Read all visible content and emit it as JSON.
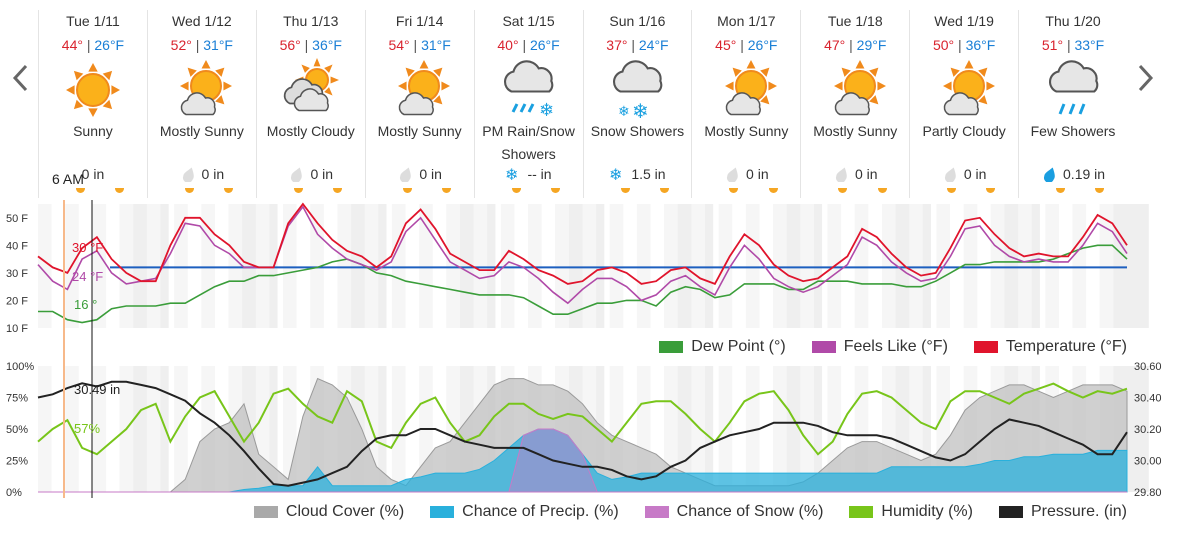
{
  "forecast": {
    "days": [
      {
        "date": "Tue 1/11",
        "hi": "44°",
        "lo": "26°F",
        "condition": "Sunny",
        "icon": "sun-icon",
        "precip": "0 in",
        "precip_icon": "none"
      },
      {
        "date": "Wed 1/12",
        "hi": "52°",
        "lo": "31°F",
        "condition": "Mostly Sunny",
        "icon": "sun-cloud-icon",
        "precip": "0 in",
        "precip_icon": "drop-icon"
      },
      {
        "date": "Thu 1/13",
        "hi": "56°",
        "lo": "36°F",
        "condition": "Mostly Cloudy",
        "icon": "cloud-sun-icon",
        "precip": "0 in",
        "precip_icon": "drop-icon"
      },
      {
        "date": "Fri 1/14",
        "hi": "54°",
        "lo": "31°F",
        "condition": "Mostly Sunny",
        "icon": "sun-cloud-icon",
        "precip": "0 in",
        "precip_icon": "drop-icon"
      },
      {
        "date": "Sat 1/15",
        "hi": "40°",
        "lo": "26°F",
        "condition": "PM Rain/Snow Showers",
        "icon": "rain-snow-icon",
        "precip": "-- in",
        "precip_icon": "snowflake-icon"
      },
      {
        "date": "Sun 1/16",
        "hi": "37°",
        "lo": "24°F",
        "condition": "Snow Showers",
        "icon": "snow-icon",
        "precip": "1.5 in",
        "precip_icon": "snowflake-icon"
      },
      {
        "date": "Mon 1/17",
        "hi": "45°",
        "lo": "26°F",
        "condition": "Mostly Sunny",
        "icon": "sun-cloud-icon",
        "precip": "0 in",
        "precip_icon": "drop-icon"
      },
      {
        "date": "Tue 1/18",
        "hi": "47°",
        "lo": "29°F",
        "condition": "Mostly Sunny",
        "icon": "sun-cloud-icon",
        "precip": "0 in",
        "precip_icon": "drop-icon"
      },
      {
        "date": "Wed 1/19",
        "hi": "50°",
        "lo": "36°F",
        "condition": "Partly Cloudy",
        "icon": "sun-cloud-icon",
        "precip": "0 in",
        "precip_icon": "drop-icon"
      },
      {
        "date": "Thu 1/20",
        "hi": "51°",
        "lo": "33°F",
        "condition": "Few Showers",
        "icon": "rain-icon",
        "precip": "0.19 in",
        "precip_icon": "drop-blue-icon"
      }
    ],
    "sep": "|",
    "current_time": "6 AM"
  },
  "colors": {
    "hi": "#d9232e",
    "lo": "#1a7fd6",
    "dew": "#3a9d3a",
    "feels": "#b04aa8",
    "temp": "#e0142c",
    "cloud": "#a9a9a9",
    "precip": "#29b0dc",
    "snow": "#c77ac7",
    "humidity": "#78c51a",
    "pressure": "#222222",
    "freezing": "#1d5fbf"
  },
  "chart_data": [
    {
      "type": "line",
      "ylim": [
        10,
        55
      ],
      "yticks": [
        "50 F",
        "40 F",
        "30 F",
        "20 F",
        "10 F"
      ],
      "readout": {
        "temp": "30 °F",
        "feels": "24 °F",
        "dew": "16 °"
      },
      "legend": [
        "Dew Point (°)",
        "Feels Like (°F)",
        "Temperature (°F)"
      ],
      "freezing_line": 32,
      "series": [
        {
          "name": "Temperature (°F)",
          "key": "temp",
          "values": [
            36,
            32,
            30,
            39,
            43,
            35,
            30,
            27,
            27,
            40,
            50,
            50,
            44,
            40,
            34,
            32,
            32,
            48,
            55,
            48,
            42,
            38,
            36,
            32,
            36,
            48,
            53,
            46,
            37,
            34,
            31,
            31,
            38,
            35,
            31,
            29,
            26,
            27,
            31,
            32,
            30,
            26,
            27,
            31,
            32,
            28,
            26,
            36,
            44,
            40,
            33,
            29,
            27,
            28,
            32,
            36,
            46,
            43,
            37,
            32,
            29,
            30,
            39,
            49,
            50,
            44,
            39,
            36,
            37,
            36,
            36,
            43,
            51,
            48,
            40
          ]
        },
        {
          "name": "Feels Like (°F)",
          "key": "feels",
          "values": [
            33,
            27,
            24,
            35,
            38,
            30,
            26,
            27,
            28,
            37,
            48,
            47,
            40,
            37,
            32,
            32,
            32,
            47,
            54,
            44,
            39,
            35,
            33,
            31,
            34,
            45,
            50,
            42,
            34,
            31,
            28,
            29,
            34,
            32,
            28,
            23,
            19,
            24,
            28,
            28,
            25,
            20,
            22,
            27,
            29,
            25,
            22,
            32,
            40,
            35,
            28,
            25,
            23,
            25,
            29,
            33,
            43,
            40,
            34,
            30,
            27,
            28,
            36,
            46,
            47,
            40,
            36,
            34,
            35,
            34,
            34,
            40,
            48,
            45,
            37
          ]
        },
        {
          "name": "Dew Point (°)",
          "key": "dew",
          "values": [
            16,
            16,
            13,
            12,
            13,
            17,
            18,
            18,
            18,
            19,
            19,
            22,
            25,
            27,
            27,
            29,
            29,
            30,
            31,
            32,
            34,
            35,
            33,
            30,
            29,
            27,
            26,
            25,
            24,
            23,
            22,
            22,
            22,
            21,
            18,
            15,
            15,
            17,
            19,
            19,
            20,
            20,
            18,
            23,
            25,
            24,
            21,
            22,
            26,
            26,
            26,
            24,
            24,
            27,
            27,
            27,
            26,
            26,
            26,
            25,
            25,
            27,
            30,
            33,
            33,
            34,
            34,
            34,
            34,
            35,
            37,
            39,
            40,
            40,
            35
          ]
        }
      ]
    },
    {
      "type": "area",
      "ylim": [
        0,
        100
      ],
      "yticks": [
        "100%",
        "75%",
        "50%",
        "25%",
        "0%"
      ],
      "y2ticks": [
        "30.60",
        "30.40",
        "30.20",
        "30.00",
        "29.80"
      ],
      "y2lim": [
        29.8,
        30.6
      ],
      "readout": {
        "humidity": "57%",
        "pressure": "30.49 in"
      },
      "legend": [
        "Cloud Cover (%)",
        "Chance of Precip. (%)",
        "Chance of Snow (%)",
        "Humidity (%)",
        "Pressure. (in)"
      ],
      "series": [
        {
          "name": "Cloud Cover (%)",
          "key": "cloud",
          "values": [
            0,
            0,
            0,
            0,
            0,
            0,
            0,
            0,
            0,
            0,
            10,
            40,
            50,
            55,
            70,
            30,
            20,
            10,
            60,
            90,
            85,
            75,
            50,
            20,
            10,
            5,
            20,
            35,
            40,
            55,
            70,
            85,
            90,
            90,
            85,
            85,
            80,
            70,
            55,
            45,
            40,
            35,
            30,
            20,
            15,
            10,
            5,
            5,
            5,
            5,
            5,
            5,
            8,
            15,
            25,
            35,
            40,
            40,
            35,
            30,
            25,
            30,
            45,
            65,
            75,
            80,
            85,
            85,
            80,
            75,
            80,
            85,
            85,
            85,
            80
          ]
        },
        {
          "name": "Chance of Precip. (%)",
          "key": "precip",
          "values": [
            0,
            0,
            0,
            0,
            0,
            0,
            0,
            0,
            0,
            0,
            0,
            0,
            0,
            0,
            2,
            3,
            5,
            5,
            5,
            20,
            5,
            5,
            5,
            5,
            5,
            10,
            12,
            15,
            15,
            15,
            18,
            25,
            35,
            45,
            50,
            50,
            45,
            30,
            15,
            10,
            12,
            15,
            15,
            15,
            15,
            15,
            15,
            15,
            15,
            15,
            15,
            15,
            15,
            15,
            15,
            15,
            15,
            15,
            20,
            20,
            20,
            20,
            20,
            20,
            22,
            25,
            25,
            28,
            28,
            30,
            30,
            30,
            33,
            33,
            33
          ]
        },
        {
          "name": "Chance of Snow (%)",
          "key": "snow",
          "values": [
            0,
            0,
            0,
            0,
            0,
            0,
            0,
            0,
            0,
            0,
            0,
            0,
            0,
            0,
            0,
            0,
            0,
            0,
            0,
            0,
            0,
            0,
            0,
            0,
            0,
            0,
            0,
            0,
            0,
            0,
            0,
            0,
            0,
            45,
            50,
            50,
            45,
            30,
            0,
            0,
            0,
            0,
            0,
            0,
            0,
            0,
            0,
            0,
            0,
            0,
            0,
            0,
            0,
            0,
            0,
            0,
            0,
            0,
            0,
            0,
            0,
            0,
            0,
            0,
            0,
            0,
            0,
            0,
            0,
            0,
            0,
            0,
            0,
            0,
            0
          ]
        },
        {
          "name": "Humidity (%)",
          "key": "humidity",
          "values": [
            40,
            50,
            57,
            35,
            30,
            40,
            50,
            65,
            70,
            40,
            60,
            75,
            80,
            60,
            40,
            55,
            78,
            82,
            70,
            60,
            55,
            80,
            72,
            40,
            35,
            55,
            70,
            75,
            55,
            40,
            45,
            60,
            70,
            70,
            62,
            58,
            62,
            60,
            50,
            40,
            55,
            70,
            72,
            72,
            62,
            50,
            40,
            55,
            72,
            78,
            80,
            65,
            45,
            30,
            40,
            62,
            78,
            80,
            75,
            65,
            55,
            50,
            72,
            80,
            80,
            75,
            70,
            78,
            82,
            86,
            80,
            75,
            80,
            78,
            82
          ]
        },
        {
          "name": "Pressure. (in)",
          "key": "pressure",
          "values": [
            30.4,
            30.42,
            30.46,
            30.49,
            30.47,
            30.5,
            30.5,
            30.48,
            30.46,
            30.42,
            30.38,
            30.3,
            30.24,
            30.16,
            30.06,
            29.95,
            29.85,
            29.84,
            29.86,
            29.88,
            29.92,
            29.96,
            30.06,
            30.14,
            30.16,
            30.16,
            30.2,
            30.2,
            30.16,
            30.12,
            30.1,
            30.08,
            30.08,
            30.08,
            30.04,
            30.0,
            29.98,
            29.96,
            29.96,
            29.94,
            29.9,
            29.88,
            29.9,
            29.96,
            30.0,
            30.08,
            30.12,
            30.16,
            30.18,
            30.2,
            30.24,
            30.24,
            30.24,
            30.22,
            30.18,
            30.16,
            30.16,
            30.16,
            30.14,
            30.1,
            30.06,
            30.02,
            30.0,
            30.04,
            30.12,
            30.2,
            30.26,
            30.24,
            30.22,
            30.18,
            30.14,
            30.1,
            30.04,
            30.04,
            30.18
          ]
        }
      ]
    }
  ]
}
